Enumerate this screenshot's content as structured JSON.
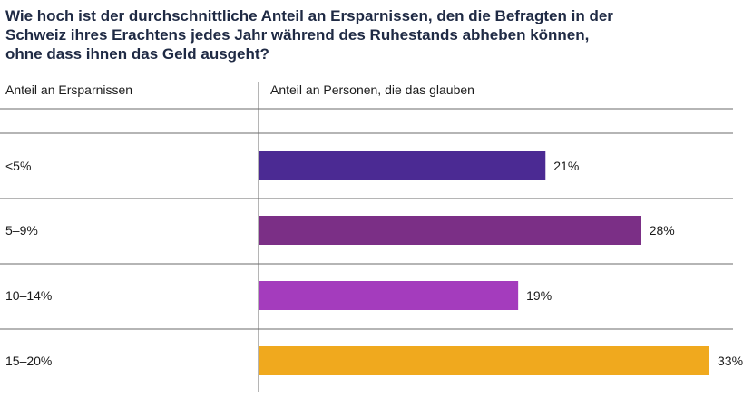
{
  "title": "Wie hoch ist der durchschnittliche Anteil an Ersparnissen, den die Befragten in der Schweiz ihres Erachtens jedes Jahr während des Ruhestands abheben können, ohne dass ihnen das Geld ausgeht?",
  "column_headers": {
    "left": "Anteil an Ersparnissen",
    "right": "Anteil an Personen, die das glauben"
  },
  "chart_data": {
    "type": "bar",
    "orientation": "horizontal",
    "title": "Wie hoch ist der durchschnittliche Anteil an Ersparnissen, den die Befragten in der Schweiz ihres Erachtens jedes Jahr während des Ruhestands abheben können, ohne dass ihnen das Geld ausgeht?",
    "xlabel": "Anteil an Personen, die das glauben",
    "ylabel": "Anteil an Ersparnissen",
    "categories": [
      "<5%",
      "5–9%",
      "10–14%",
      "15–20%"
    ],
    "values": [
      21,
      28,
      19,
      33
    ],
    "value_labels": [
      "21%",
      "28%",
      "19%",
      "33%"
    ],
    "unit": "%",
    "colors": [
      "#4b2a93",
      "#7b2f86",
      "#a43cbd",
      "#f0a91e"
    ],
    "xlim": [
      0,
      33
    ],
    "grid": false,
    "legend": "none"
  }
}
